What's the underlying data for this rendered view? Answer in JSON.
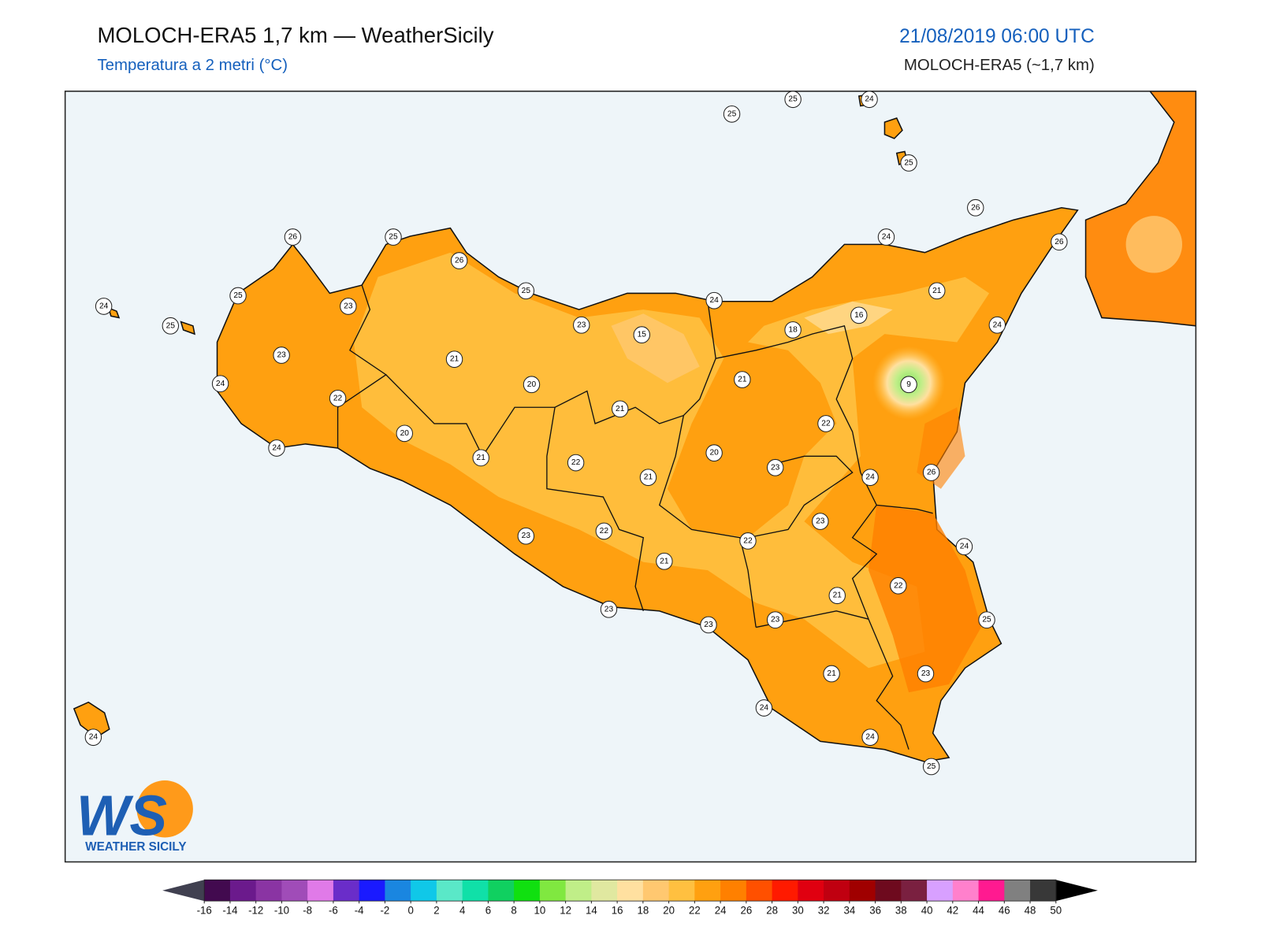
{
  "header": {
    "title": "MOLOCH-ERA5 1,7 km — WeatherSicily",
    "subtitle": "Temperatura a 2 metri (°C)",
    "datetime": "21/08/2019 06:00 UTC",
    "model": "MOLOCH-ERA5 (~1,7 km)"
  },
  "stations": [
    25,
    25,
    24,
    25,
    26,
    24,
    26,
    26,
    25,
    26,
    25,
    25,
    24,
    23,
    25,
    24,
    21,
    16,
    18,
    24,
    23,
    15,
    23,
    21,
    24,
    21,
    9,
    20,
    22,
    21,
    22,
    20,
    24,
    20,
    21,
    22,
    23,
    24,
    26,
    21,
    23,
    22,
    23,
    22,
    24,
    21,
    22,
    21,
    23,
    23,
    23,
    25,
    23,
    21,
    24,
    24,
    24,
    25
  ],
  "logo": {
    "mark": "WS",
    "text": "WEATHER SICILY"
  },
  "colorbar": {
    "ticks": [
      -16,
      -14,
      -12,
      -10,
      -8,
      -6,
      -4,
      -2,
      0,
      2,
      4,
      6,
      8,
      10,
      12,
      14,
      16,
      18,
      20,
      22,
      24,
      26,
      28,
      30,
      32,
      34,
      36,
      38,
      40,
      42,
      44,
      46,
      48,
      50
    ],
    "colors": [
      "#420a4f",
      "#6b1a8c",
      "#8a34a3",
      "#a04cb8",
      "#e07ae8",
      "#6a2dc9",
      "#1a1aff",
      "#1a86e0",
      "#10c8e8",
      "#5ae8c8",
      "#10e0a8",
      "#10d060",
      "#10e010",
      "#80e840",
      "#c0ee88",
      "#e0e8a0",
      "#ffe0a0",
      "#ffc870",
      "#ffc040",
      "#ffa010",
      "#ff8000",
      "#ff5000",
      "#ff1a00",
      "#e00010",
      "#c00010",
      "#a00000",
      "#6e0a1e",
      "#7a2040",
      "#d8a0ff",
      "#ff80cc",
      "#ff1a90",
      "#808080",
      "#383838"
    ],
    "under_color": "#404050",
    "over_color": "#000000"
  }
}
